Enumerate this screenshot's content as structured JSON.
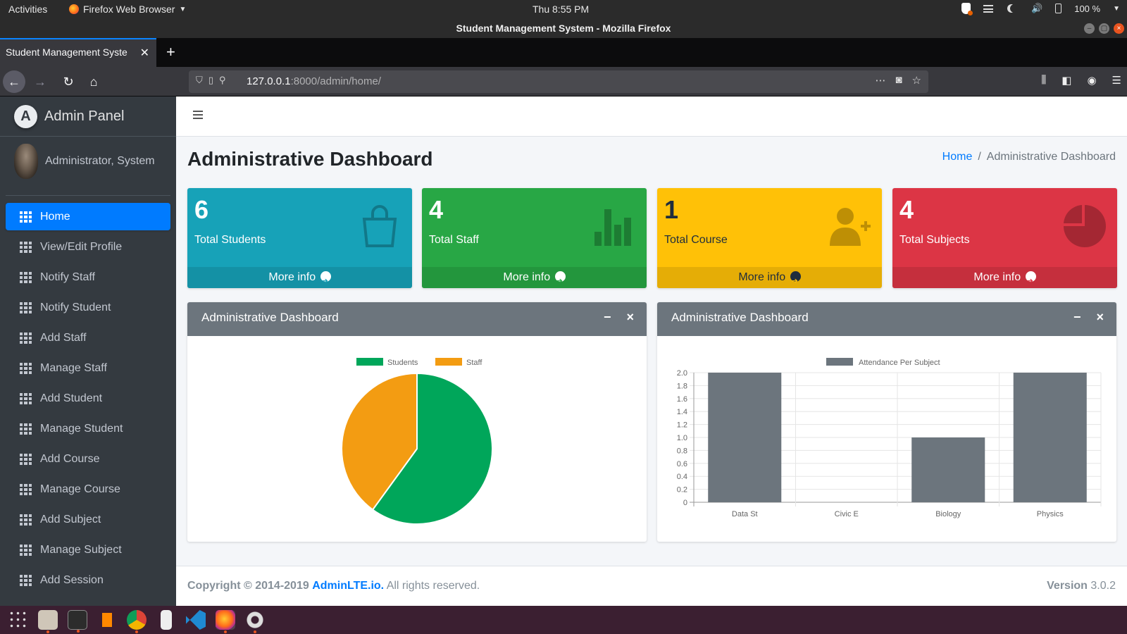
{
  "os": {
    "activities": "Activities",
    "app_menu": "Firefox Web Browser",
    "clock": "Thu  8:55 PM",
    "battery": "100 %"
  },
  "browser": {
    "window_title": "Student Management System - Mozilla Firefox",
    "tab_title": "Student Management Syste",
    "url_host": "127.0.0.1",
    "url_path": ":8000/admin/home/"
  },
  "sidebar": {
    "brand": "Admin Panel",
    "brand_letter": "A",
    "user": "Administrator, System",
    "items": [
      {
        "label": "Home"
      },
      {
        "label": "View/Edit Profile"
      },
      {
        "label": "Notify Staff"
      },
      {
        "label": "Notify Student"
      },
      {
        "label": "Add Staff"
      },
      {
        "label": "Manage Staff"
      },
      {
        "label": "Add Student"
      },
      {
        "label": "Manage Student"
      },
      {
        "label": "Add Course"
      },
      {
        "label": "Manage Course"
      },
      {
        "label": "Add Subject"
      },
      {
        "label": "Manage Subject"
      },
      {
        "label": "Add Session"
      }
    ]
  },
  "page": {
    "title": "Administrative Dashboard",
    "breadcrumb_home": "Home",
    "breadcrumb_sep": "/",
    "breadcrumb_current": "Administrative Dashboard"
  },
  "stats": [
    {
      "value": "6",
      "label": "Total Students",
      "more": "More info",
      "icon": "shopping-bag-icon",
      "color": "#17a2b8"
    },
    {
      "value": "4",
      "label": "Total Staff",
      "more": "More info",
      "icon": "bar-chart-icon",
      "color": "#28a745"
    },
    {
      "value": "1",
      "label": "Total Course",
      "more": "More info",
      "icon": "user-plus-icon",
      "color": "#ffc107"
    },
    {
      "value": "4",
      "label": "Total Subjects",
      "more": "More info",
      "icon": "pie-chart-icon",
      "color": "#dc3545"
    }
  ],
  "cards": [
    {
      "title": "Administrative Dashboard",
      "minimize": "−",
      "close": "×"
    },
    {
      "title": "Administrative Dashboard",
      "minimize": "−",
      "close": "×"
    }
  ],
  "chart_data": [
    {
      "type": "pie",
      "categories": [
        "Students",
        "Staff"
      ],
      "values": [
        6,
        4
      ],
      "colors": [
        "#00a65a",
        "#f39c12"
      ],
      "legend": "top"
    },
    {
      "type": "bar",
      "categories": [
        "Data St",
        "Civic E",
        "Biology",
        "Physics"
      ],
      "series": [
        {
          "name": "Attendance Per Subject",
          "values": [
            2,
            0,
            1,
            2
          ]
        }
      ],
      "ylim": [
        0,
        2.0
      ],
      "yticks": [
        "0",
        "0.2",
        "0.4",
        "0.6",
        "0.8",
        "1.0",
        "1.2",
        "1.4",
        "1.6",
        "1.8",
        "2.0"
      ],
      "color": "#6c757d",
      "grid": true,
      "legend": "top"
    }
  ],
  "footer": {
    "copyright_prefix": "Copyright © 2014-2019",
    "brand_link": "AdminLTE.io.",
    "rights": "All rights reserved.",
    "version_label": "Version",
    "version": "3.0.2"
  }
}
